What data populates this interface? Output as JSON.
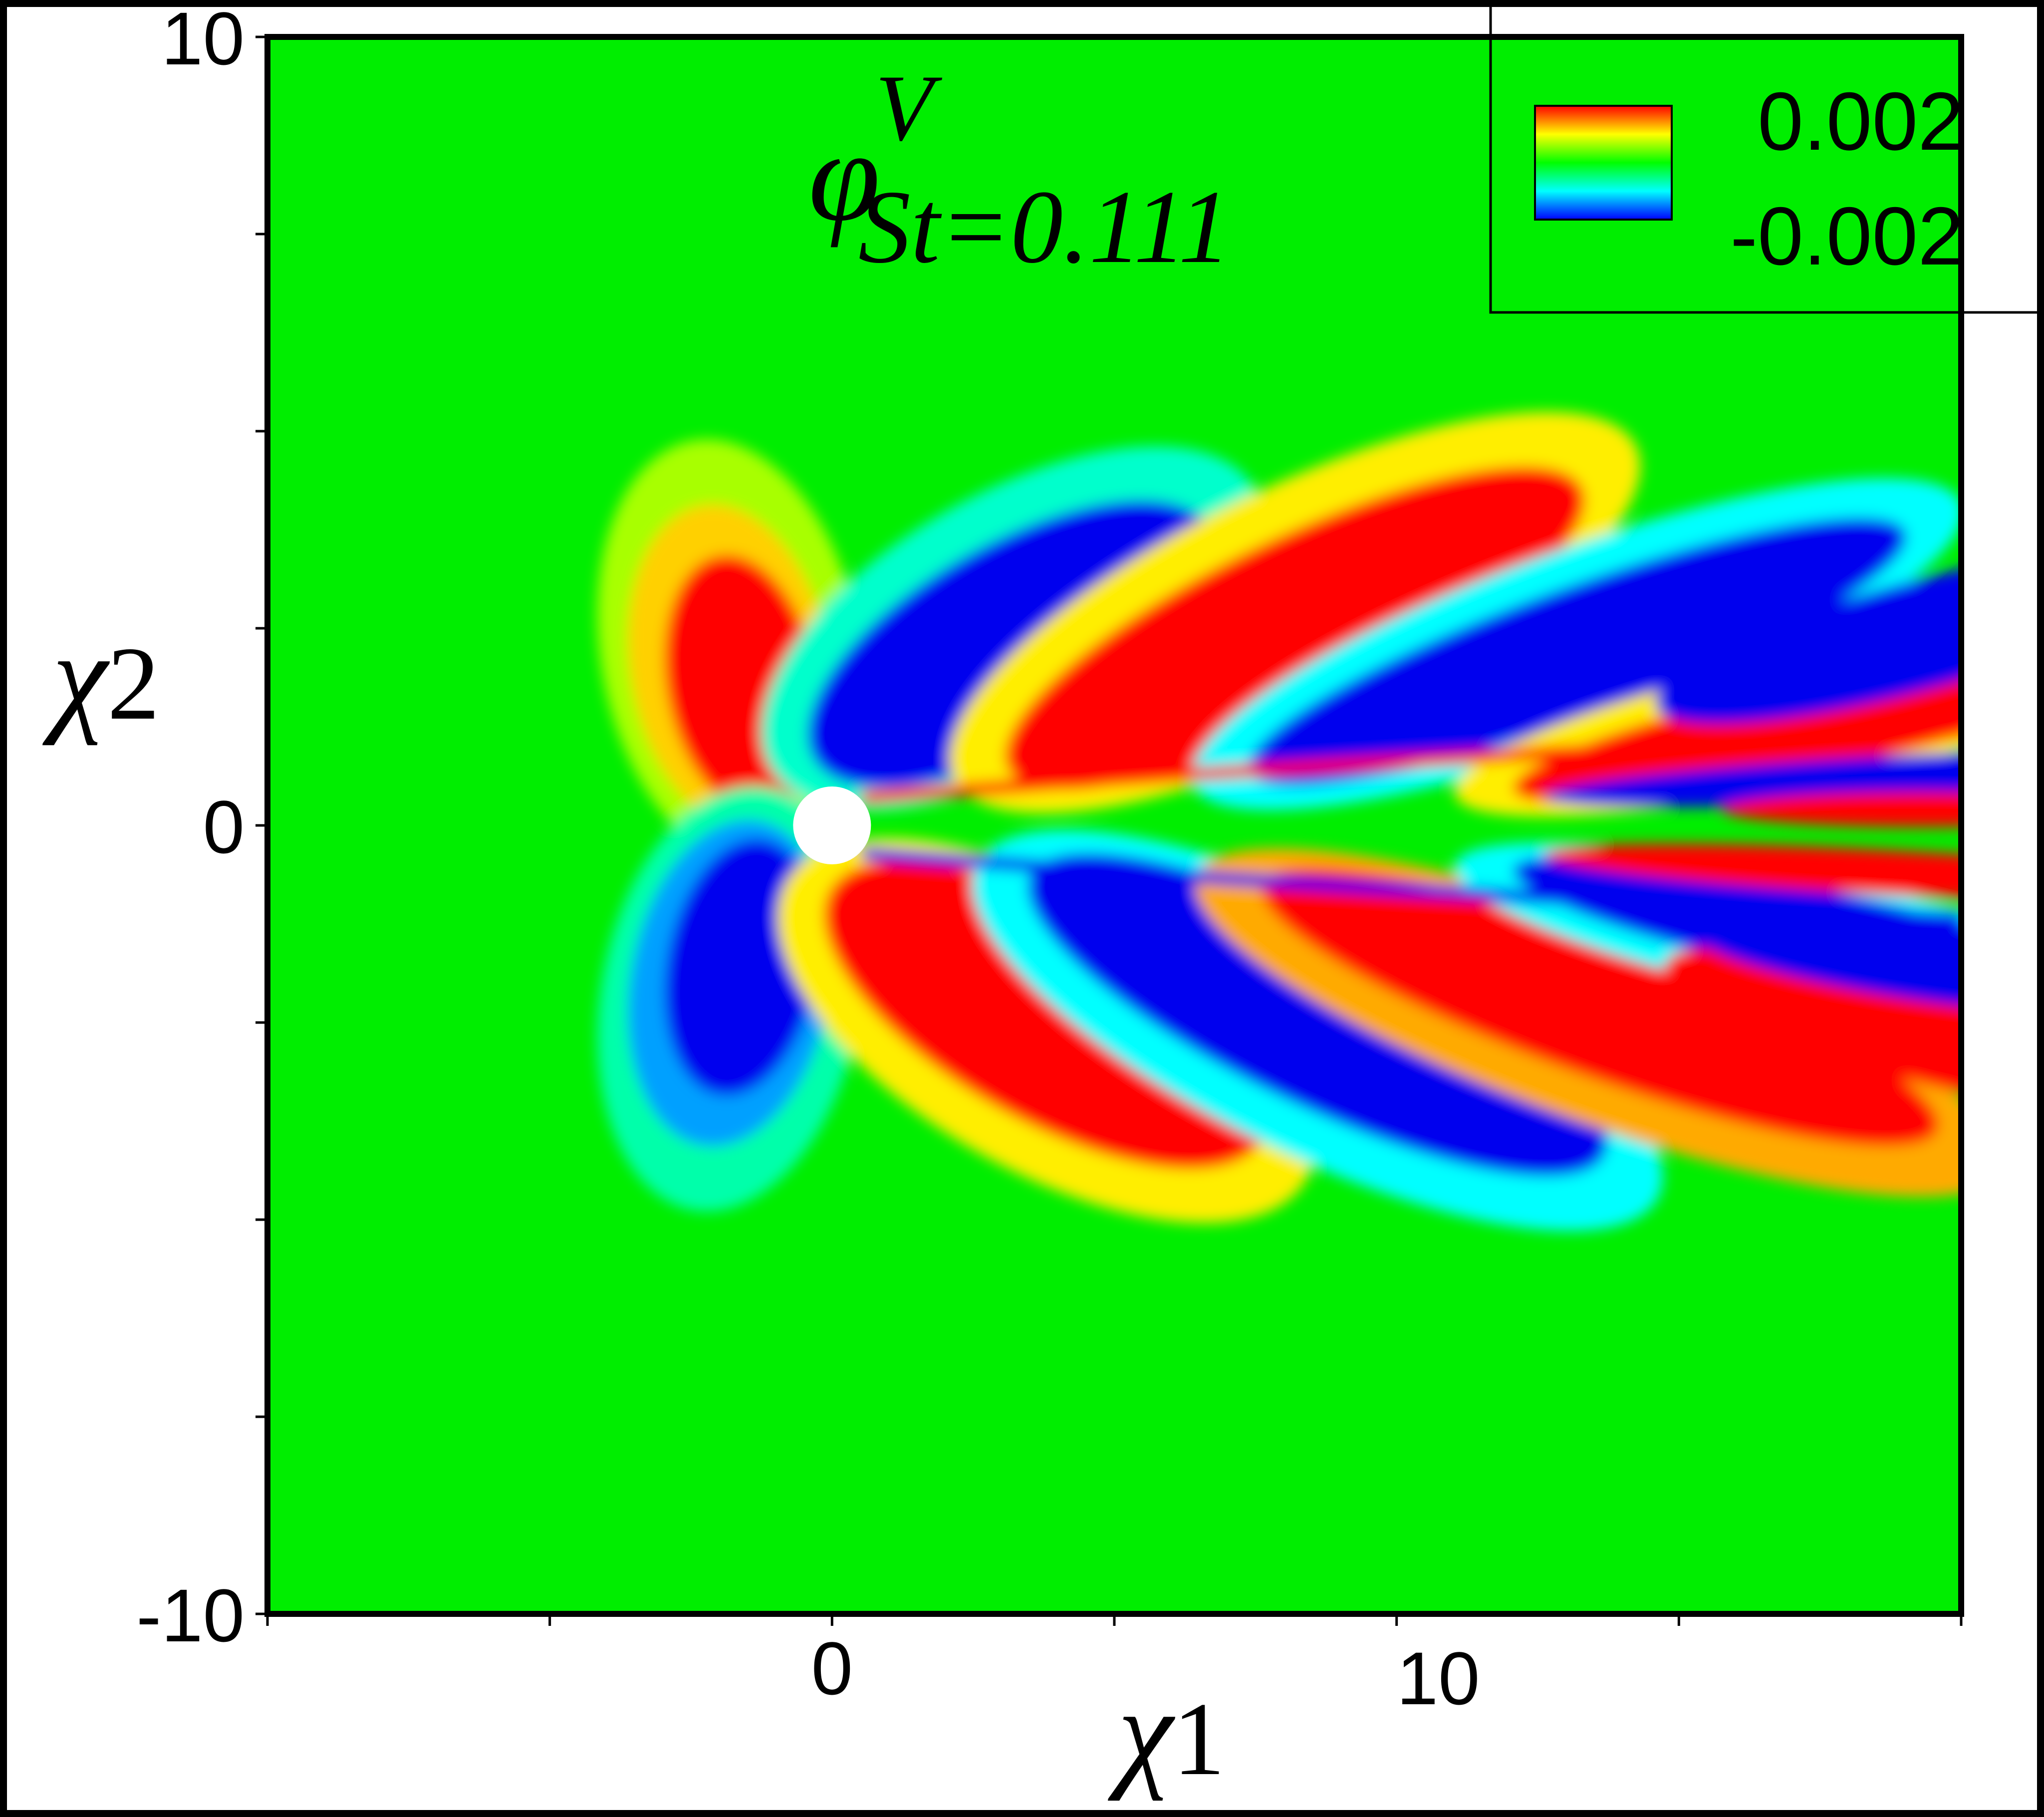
{
  "chart_data": {
    "type": "heatmap",
    "title": "",
    "field_symbol": "φ",
    "field_superscript": "V",
    "field_subscript": "St=0.111",
    "xlabel_symbol": "χ",
    "xlabel_index": "1",
    "ylabel_symbol": "χ",
    "ylabel_index": "2",
    "xlim": [
      -10,
      20
    ],
    "ylim": [
      -10,
      10
    ],
    "x_tick_labels": [
      {
        "value": 0,
        "label": "0"
      },
      {
        "value": 10,
        "label": "10"
      }
    ],
    "y_tick_labels": [
      {
        "value": 10,
        "label": "10"
      },
      {
        "value": 0,
        "label": "0"
      },
      {
        "value": -10,
        "label": "-10"
      }
    ],
    "x_minor_ticks": [
      -10,
      -5,
      0,
      5,
      10,
      15,
      20
    ],
    "y_minor_ticks": [
      -10,
      -7.5,
      -5,
      -2.5,
      0,
      2.5,
      5,
      7.5,
      10
    ],
    "colorbar": {
      "max_label": "0.002",
      "min_label": "-0.002",
      "vmax": 0.002,
      "vmin": -0.002,
      "colormap": [
        "#0000ff",
        "#00ffff",
        "#00ff00",
        "#ffff00",
        "#ff0000"
      ]
    },
    "cylinder": {
      "center": [
        0,
        0
      ],
      "radius": 0.5,
      "color": "#ffffff"
    },
    "colors": {
      "background": "#00ee00",
      "positive": "#ff0000",
      "negative": "#0000ee",
      "frame": "#000000"
    }
  }
}
